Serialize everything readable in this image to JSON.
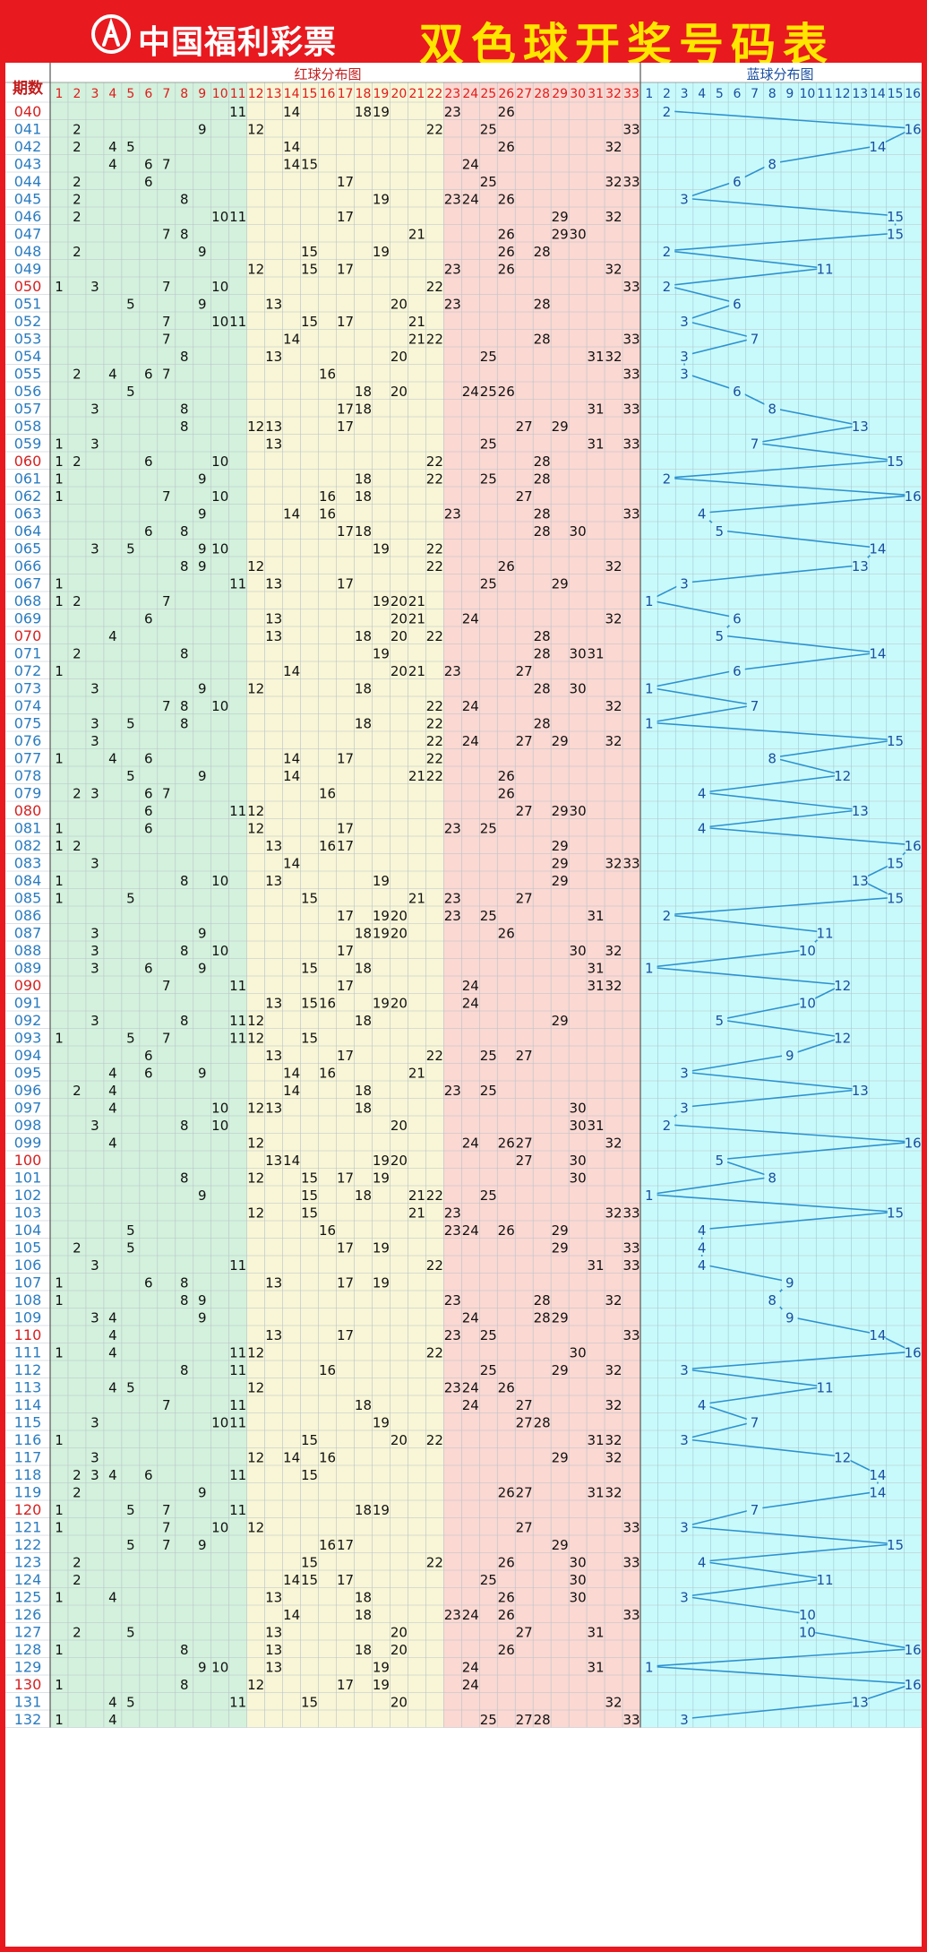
{
  "header": {
    "brand": "中国福利彩票",
    "title": "双色球开奖号码表"
  },
  "table_header": {
    "period_label": "期数",
    "red_title": "红球分布图",
    "blue_title": "蓝球分布图"
  },
  "colors": {
    "frame_red": "#e8191f",
    "title_yellow": "#ffe600",
    "zone1_bg": "#d3f1dc",
    "zone2_bg": "#f8f6d6",
    "zone3_bg": "#fbd8d2",
    "blue_bg": "#c9fafb",
    "red_number": "#e11b1b",
    "black_number": "#111111",
    "blue_number": "#1a4fa0",
    "blue_line": "#2d92d0",
    "period_red": "#d62020",
    "period_blue": "#2a7cc0"
  },
  "chart_data": {
    "type": "table",
    "red_range": [
      1,
      33
    ],
    "blue_range": [
      1,
      16
    ],
    "periods": [
      "040",
      "041",
      "042",
      "043",
      "044",
      "045",
      "046",
      "047",
      "048",
      "049",
      "050",
      "051",
      "052",
      "053",
      "054",
      "055",
      "056",
      "057",
      "058",
      "059",
      "060",
      "061",
      "062",
      "063",
      "064",
      "065",
      "066",
      "067",
      "068",
      "069",
      "070",
      "071",
      "072",
      "073",
      "074",
      "075",
      "076",
      "077",
      "078",
      "079",
      "080",
      "081",
      "082",
      "083",
      "084",
      "085",
      "086",
      "087",
      "088",
      "089",
      "090",
      "091",
      "092",
      "093",
      "094",
      "095",
      "096",
      "097",
      "098",
      "099",
      "100",
      "101",
      "102",
      "103",
      "104",
      "105",
      "106",
      "107",
      "108",
      "109",
      "110",
      "111",
      "112",
      "113",
      "114",
      "115",
      "116",
      "117",
      "118",
      "119",
      "120",
      "121",
      "122",
      "123",
      "124",
      "125",
      "126",
      "127",
      "128",
      "129",
      "130",
      "131",
      "132"
    ],
    "red_periods": [
      "040",
      "050",
      "060",
      "070",
      "080",
      "090",
      "100",
      "110",
      "120",
      "130"
    ],
    "red_balls": [
      [
        11,
        14,
        18,
        19,
        23,
        26
      ],
      [
        2,
        9,
        12,
        22,
        25,
        33
      ],
      [
        2,
        4,
        5,
        14,
        26,
        32
      ],
      [
        4,
        6,
        7,
        14,
        15,
        24
      ],
      [
        2,
        6,
        17,
        25,
        32,
        33
      ],
      [
        2,
        8,
        19,
        23,
        24,
        26
      ],
      [
        2,
        10,
        11,
        17,
        29,
        32
      ],
      [
        7,
        8,
        21,
        26,
        29,
        30
      ],
      [
        2,
        9,
        15,
        19,
        26,
        28
      ],
      [
        12,
        15,
        17,
        23,
        26,
        32
      ],
      [
        1,
        3,
        7,
        10,
        22,
        33
      ],
      [
        5,
        9,
        13,
        20,
        23,
        28
      ],
      [
        7,
        10,
        11,
        15,
        17,
        21
      ],
      [
        7,
        14,
        21,
        22,
        28,
        33
      ],
      [
        8,
        13,
        20,
        25,
        31,
        32
      ],
      [
        2,
        4,
        6,
        7,
        16,
        33
      ],
      [
        5,
        18,
        20,
        24,
        25,
        26
      ],
      [
        3,
        8,
        17,
        18,
        31,
        33
      ],
      [
        8,
        12,
        13,
        17,
        27,
        29
      ],
      [
        1,
        3,
        13,
        25,
        31,
        33
      ],
      [
        1,
        2,
        6,
        10,
        22,
        28
      ],
      [
        1,
        9,
        18,
        22,
        25,
        28
      ],
      [
        1,
        7,
        10,
        16,
        18,
        27
      ],
      [
        9,
        14,
        16,
        23,
        28,
        33
      ],
      [
        6,
        8,
        17,
        18,
        28,
        30
      ],
      [
        3,
        5,
        9,
        10,
        19,
        22
      ],
      [
        8,
        9,
        12,
        22,
        26,
        32
      ],
      [
        1,
        11,
        13,
        17,
        25,
        29
      ],
      [
        1,
        2,
        7,
        19,
        20,
        21
      ],
      [
        6,
        13,
        20,
        21,
        24,
        32
      ],
      [
        4,
        13,
        18,
        20,
        22,
        28
      ],
      [
        2,
        8,
        19,
        28,
        30,
        31
      ],
      [
        1,
        14,
        20,
        21,
        23,
        27
      ],
      [
        3,
        9,
        12,
        18,
        28,
        30
      ],
      [
        7,
        8,
        10,
        22,
        24,
        32
      ],
      [
        3,
        5,
        8,
        18,
        22,
        28
      ],
      [
        3,
        22,
        24,
        27,
        29,
        32
      ],
      [
        1,
        4,
        6,
        14,
        17,
        22
      ],
      [
        5,
        9,
        14,
        21,
        22,
        26
      ],
      [
        2,
        3,
        6,
        7,
        16,
        26
      ],
      [
        6,
        11,
        12,
        27,
        29,
        30
      ],
      [
        1,
        6,
        12,
        17,
        23,
        25
      ],
      [
        1,
        2,
        13,
        16,
        17,
        29
      ],
      [
        3,
        14,
        29,
        32,
        33
      ],
      [
        1,
        8,
        10,
        13,
        19,
        29
      ],
      [
        1,
        5,
        15,
        21,
        23,
        27
      ],
      [
        17,
        19,
        20,
        23,
        25,
        31
      ],
      [
        3,
        9,
        18,
        19,
        20,
        26
      ],
      [
        3,
        8,
        10,
        17,
        30,
        32
      ],
      [
        3,
        6,
        9,
        15,
        18,
        31
      ],
      [
        7,
        11,
        17,
        24,
        31,
        32
      ],
      [
        13,
        15,
        16,
        19,
        20,
        24
      ],
      [
        3,
        8,
        11,
        12,
        18,
        29
      ],
      [
        1,
        5,
        7,
        11,
        12,
        15
      ],
      [
        6,
        13,
        17,
        22,
        25,
        27
      ],
      [
        4,
        6,
        9,
        14,
        16,
        21
      ],
      [
        2,
        4,
        14,
        18,
        23,
        25
      ],
      [
        4,
        10,
        12,
        13,
        18,
        30
      ],
      [
        3,
        8,
        10,
        20,
        30,
        31
      ],
      [
        4,
        12,
        24,
        26,
        27,
        32
      ],
      [
        13,
        14,
        19,
        20,
        27,
        30
      ],
      [
        8,
        12,
        15,
        17,
        19,
        30
      ],
      [
        9,
        15,
        18,
        21,
        22,
        25
      ],
      [
        12,
        15,
        21,
        23,
        32,
        33
      ],
      [
        5,
        16,
        23,
        24,
        26,
        29
      ],
      [
        2,
        5,
        17,
        19,
        29,
        33
      ],
      [
        3,
        11,
        22,
        31,
        33
      ],
      [
        1,
        6,
        8,
        13,
        17,
        19
      ],
      [
        1,
        8,
        9,
        23,
        28,
        32
      ],
      [
        3,
        4,
        9,
        24,
        28,
        29
      ],
      [
        4,
        13,
        17,
        23,
        25,
        33
      ],
      [
        1,
        4,
        11,
        12,
        22,
        30
      ],
      [
        8,
        11,
        16,
        25,
        29,
        32
      ],
      [
        4,
        5,
        12,
        23,
        24,
        26
      ],
      [
        7,
        11,
        18,
        24,
        27,
        32
      ],
      [
        3,
        10,
        11,
        19,
        27,
        28
      ],
      [
        1,
        15,
        20,
        22,
        31,
        32
      ],
      [
        3,
        12,
        14,
        16,
        29,
        32
      ],
      [
        2,
        3,
        4,
        6,
        11,
        15
      ],
      [
        2,
        9,
        26,
        27,
        31,
        32
      ],
      [
        1,
        5,
        7,
        11,
        18,
        19
      ],
      [
        1,
        7,
        10,
        12,
        27,
        33
      ],
      [
        5,
        7,
        9,
        16,
        17,
        29
      ],
      [
        2,
        15,
        22,
        26,
        30,
        33
      ],
      [
        2,
        14,
        15,
        17,
        25,
        30
      ],
      [
        1,
        4,
        13,
        18,
        26,
        30
      ],
      [
        14,
        18,
        23,
        24,
        26,
        33
      ],
      [
        2,
        5,
        13,
        20,
        27,
        31
      ],
      [
        1,
        8,
        13,
        18,
        20,
        26
      ],
      [
        9,
        10,
        13,
        19,
        24,
        31
      ],
      [
        1,
        8,
        12,
        17,
        19,
        24
      ],
      [
        4,
        5,
        11,
        15,
        20,
        32
      ],
      [
        1,
        4,
        25,
        27,
        28,
        33
      ]
    ],
    "blue_balls": [
      2,
      16,
      14,
      8,
      6,
      3,
      15,
      15,
      2,
      11,
      2,
      6,
      3,
      7,
      3,
      3,
      6,
      8,
      13,
      7,
      15,
      2,
      16,
      4,
      5,
      14,
      13,
      3,
      1,
      6,
      5,
      14,
      6,
      1,
      7,
      1,
      15,
      8,
      12,
      4,
      13,
      4,
      16,
      15,
      13,
      15,
      2,
      11,
      10,
      1,
      12,
      10,
      5,
      12,
      9,
      3,
      13,
      3,
      2,
      16,
      5,
      8,
      1,
      15,
      4,
      4,
      4,
      9,
      8,
      9,
      14,
      16,
      3,
      11,
      4,
      7,
      3,
      12,
      14,
      14,
      7,
      3,
      15,
      4,
      11,
      3,
      10,
      10,
      16,
      1,
      16,
      13,
      3
    ],
    "red_highlights": [
      [],
      [],
      [],
      [],
      [],
      [],
      [],
      [],
      [],
      [],
      [],
      [],
      [],
      [],
      [],
      [],
      [],
      [],
      [],
      [],
      [],
      [],
      [],
      [],
      [],
      [],
      [],
      [],
      [],
      [],
      [],
      [],
      [],
      [],
      [],
      [],
      [],
      [],
      [],
      [],
      [],
      [],
      [],
      [],
      [],
      [],
      [],
      [],
      [],
      [],
      [],
      [],
      [],
      [],
      [],
      [],
      [],
      [],
      [],
      [],
      [],
      [],
      [],
      [],
      [],
      [],
      [],
      [],
      [],
      [],
      [],
      [],
      [],
      [],
      [],
      [],
      [],
      [],
      [],
      [],
      [],
      [],
      [],
      [],
      [],
      [],
      [],
      [],
      [],
      [],
      [],
      [],
      []
    ]
  }
}
